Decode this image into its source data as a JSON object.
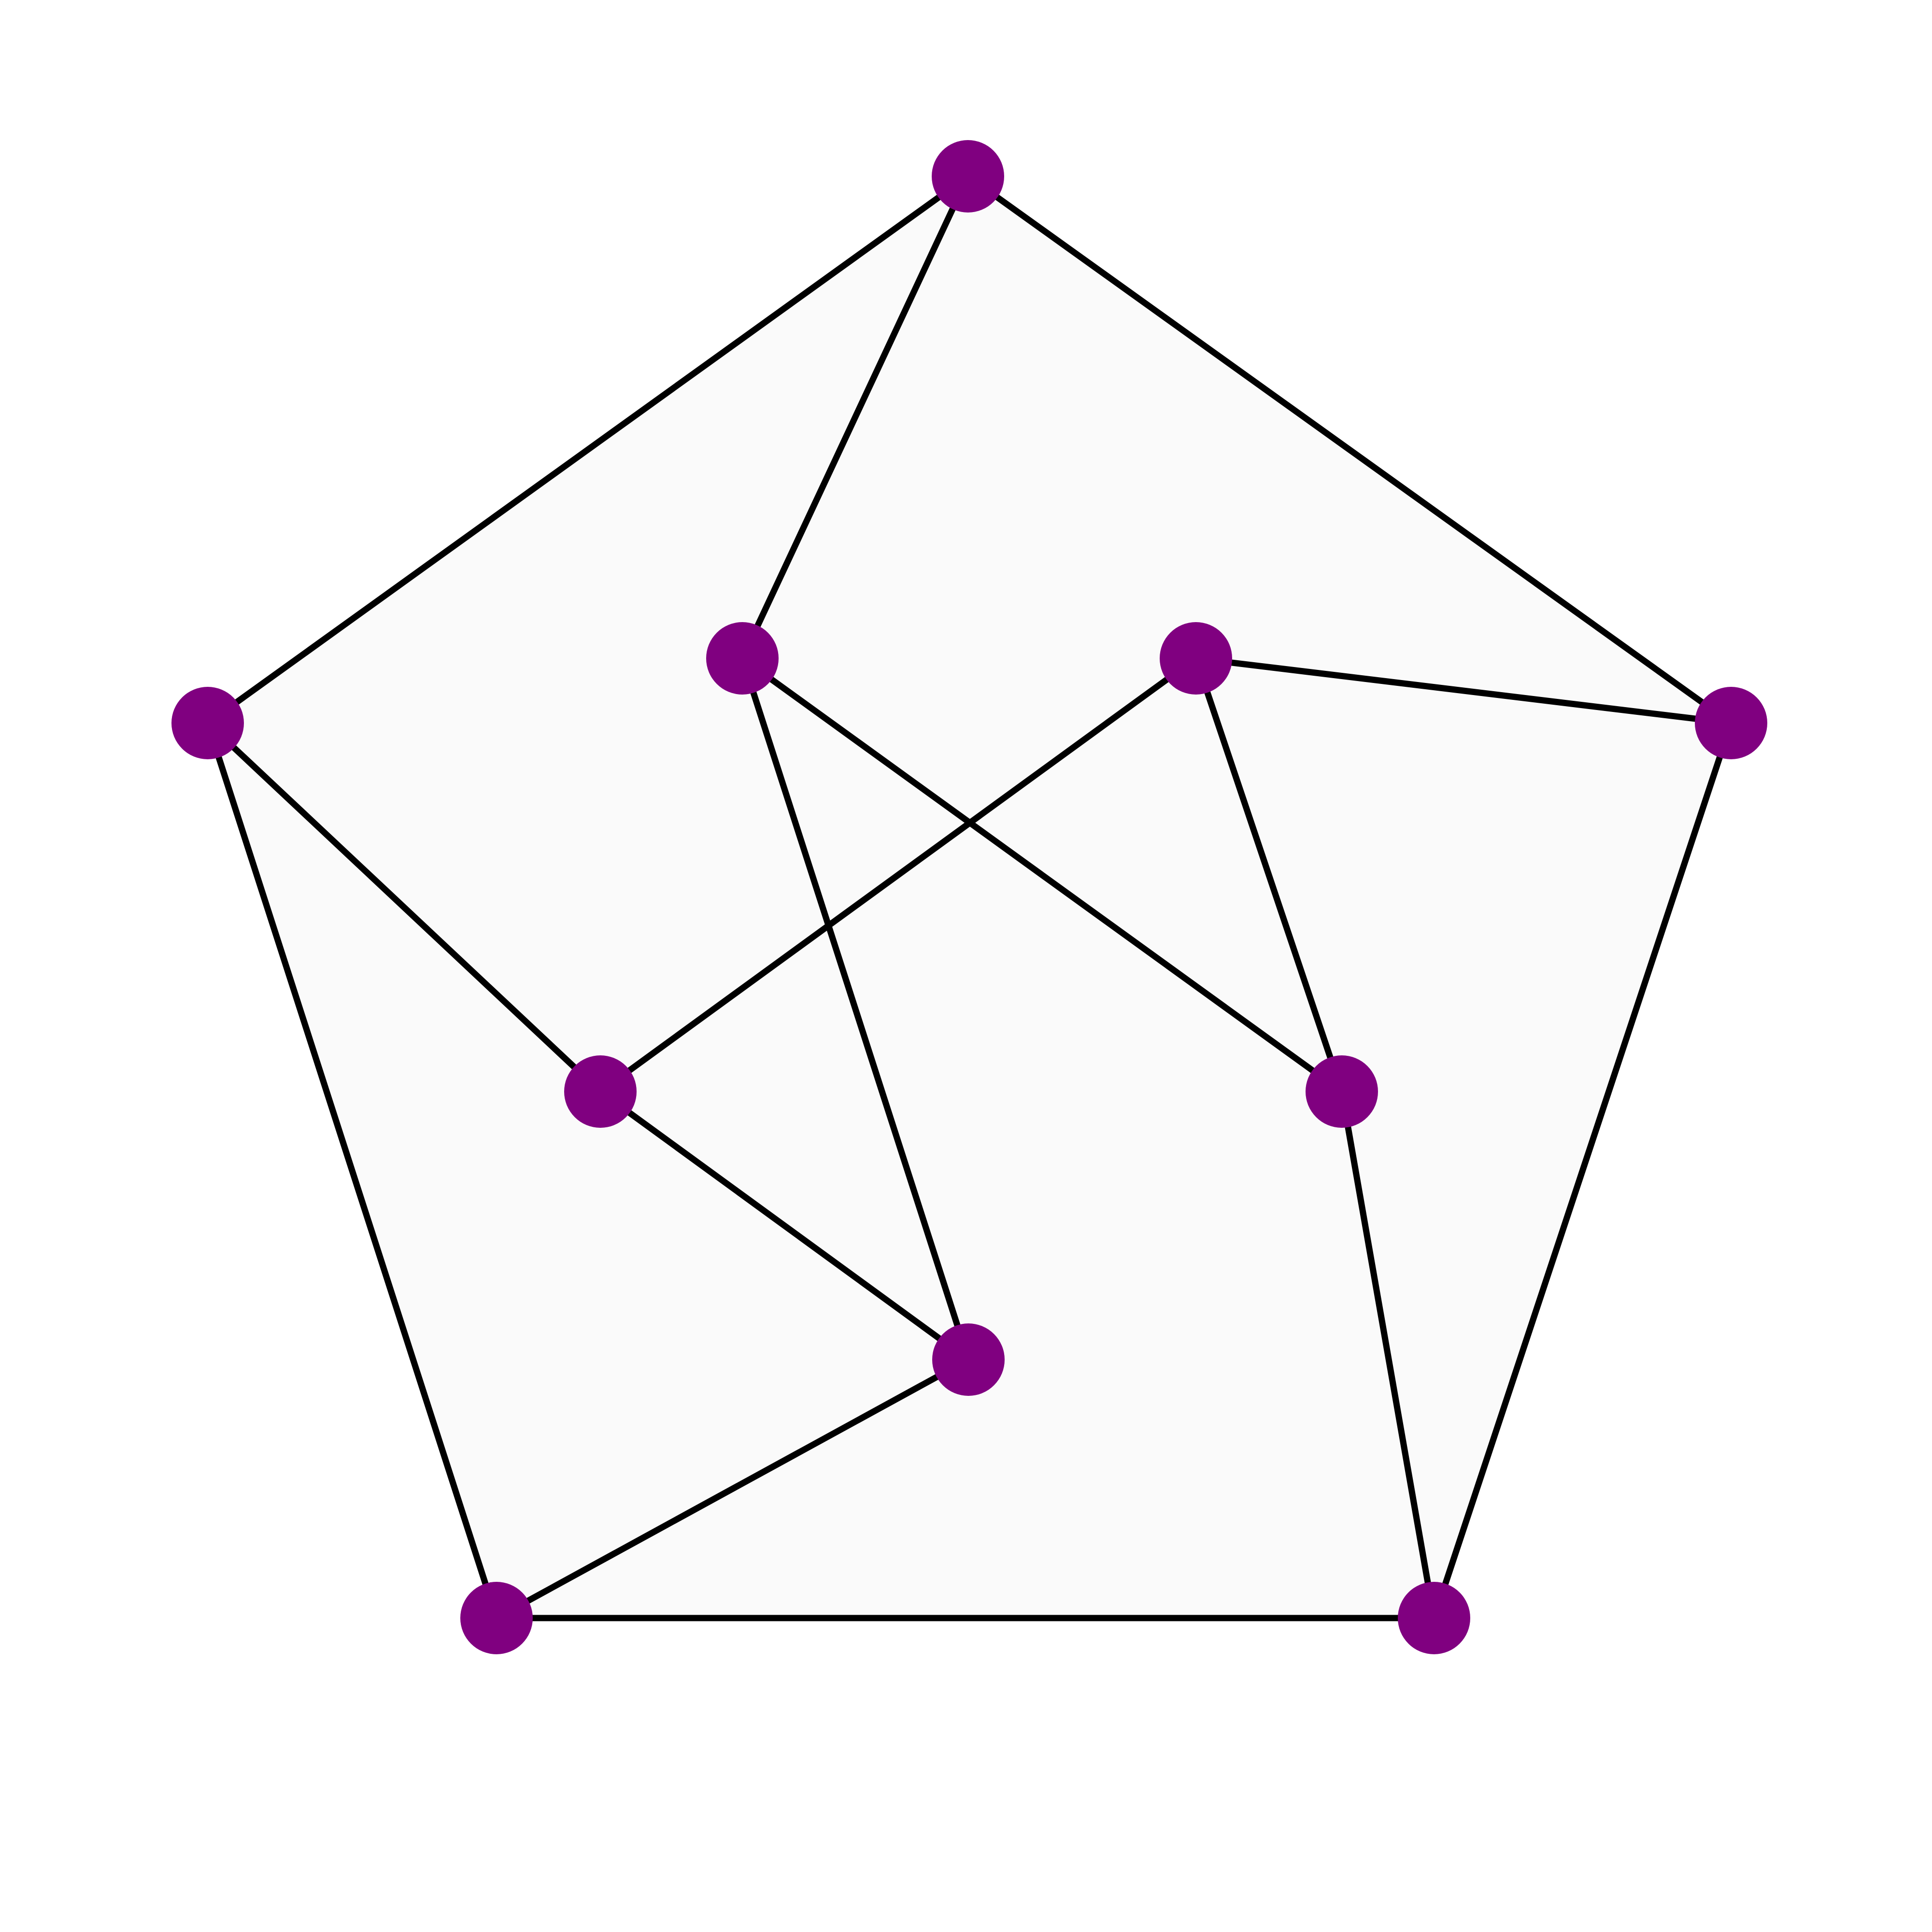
{
  "diagram": {
    "kind": "graph",
    "vertex_count": 10,
    "edge_count": 15,
    "colors": {
      "background": "#ffffff",
      "outer_face_fill": "#fafafa",
      "edge": "#000000",
      "vertex": "#800080"
    },
    "vertices": [
      {
        "id": "v0"
      },
      {
        "id": "v1"
      },
      {
        "id": "v2"
      },
      {
        "id": "v3"
      },
      {
        "id": "v4"
      },
      {
        "id": "v5"
      },
      {
        "id": "v6"
      },
      {
        "id": "v7"
      },
      {
        "id": "v8"
      },
      {
        "id": "v9"
      }
    ],
    "edges": [
      [
        "v0",
        "v1"
      ],
      [
        "v1",
        "v2"
      ],
      [
        "v2",
        "v3"
      ],
      [
        "v3",
        "v4"
      ],
      [
        "v4",
        "v0"
      ],
      [
        "v0",
        "v5"
      ],
      [
        "v1",
        "v7"
      ],
      [
        "v2",
        "v8"
      ],
      [
        "v3",
        "v9"
      ],
      [
        "v4",
        "v6"
      ],
      [
        "v5",
        "v9"
      ],
      [
        "v5",
        "v8"
      ],
      [
        "v6",
        "v7"
      ],
      [
        "v6",
        "v9"
      ],
      [
        "v7",
        "v8"
      ]
    ]
  }
}
